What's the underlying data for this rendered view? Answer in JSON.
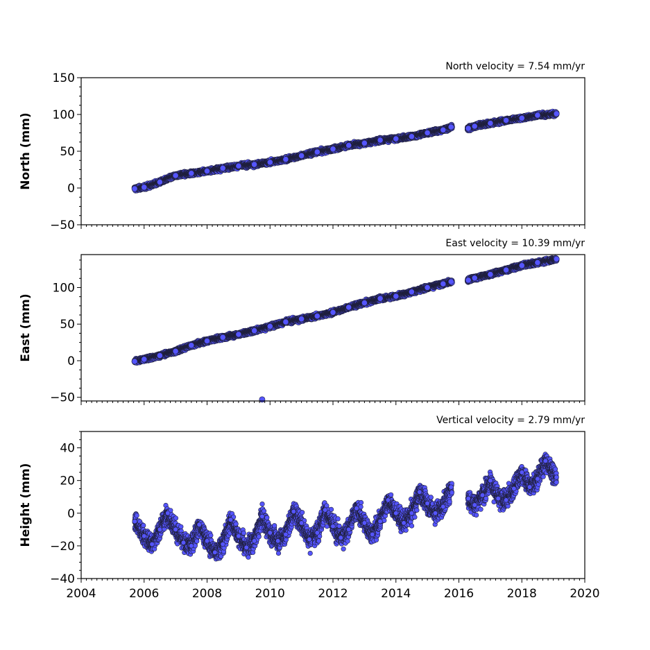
{
  "chart_data": [
    {
      "type": "scatter",
      "title": "North velocity = 7.54 mm/yr",
      "ylabel": "North (mm)",
      "xlim": [
        2004,
        2020
      ],
      "ylim": [
        -50,
        150
      ],
      "yticks": [
        -50,
        0,
        50,
        100,
        150
      ],
      "ytick_labels": [
        "−50",
        "0",
        "50",
        "100",
        "150"
      ],
      "x_tick_labels_shown": false,
      "marker_color": "#5555ff",
      "series": [
        {
          "x": [
            2005.7,
            2006.0,
            2006.5,
            2007.0,
            2007.5,
            2008.0,
            2008.5,
            2009.0,
            2009.5,
            2010.0,
            2010.5,
            2011.0,
            2011.5,
            2012.0,
            2012.5,
            2013.0,
            2013.5,
            2014.0,
            2014.5,
            2015.0,
            2015.5,
            2015.75,
            2016.3,
            2016.5,
            2017.0,
            2017.5,
            2018.0,
            2018.5,
            2019.1
          ],
          "y": [
            -1,
            1,
            8,
            17,
            20,
            23,
            27,
            30,
            32,
            35,
            39,
            44,
            49,
            53,
            58,
            61,
            65,
            67,
            70,
            75,
            79,
            83,
            81,
            84,
            88,
            92,
            95,
            99,
            101
          ]
        }
      ]
    },
    {
      "type": "scatter",
      "title": "East velocity = 10.39 mm/yr",
      "ylabel": "East (mm)",
      "xlim": [
        2004,
        2020
      ],
      "ylim": [
        -55,
        145
      ],
      "yticks": [
        -50,
        0,
        50,
        100
      ],
      "ytick_labels": [
        "−50",
        "0",
        "50",
        "100"
      ],
      "x_tick_labels_shown": false,
      "marker_color": "#5555ff",
      "series": [
        {
          "x": [
            2005.7,
            2006.0,
            2006.5,
            2007.0,
            2007.5,
            2008.0,
            2008.5,
            2009.0,
            2009.5,
            2010.0,
            2010.5,
            2011.0,
            2011.5,
            2012.0,
            2012.5,
            2013.0,
            2013.5,
            2014.0,
            2014.5,
            2015.0,
            2015.5,
            2015.75,
            2016.3,
            2016.5,
            2017.0,
            2017.5,
            2018.0,
            2018.5,
            2019.1
          ],
          "y": [
            -1,
            2,
            7,
            13,
            21,
            27,
            32,
            36,
            41,
            47,
            53,
            57,
            61,
            66,
            73,
            79,
            85,
            88,
            94,
            100,
            105,
            108,
            110,
            113,
            118,
            124,
            130,
            134,
            139
          ]
        }
      ]
    },
    {
      "type": "scatter",
      "title": "Vertical velocity = 2.79 mm/yr",
      "ylabel": "Height (mm)",
      "xlabel": "",
      "xlim": [
        2004,
        2020
      ],
      "ylim": [
        -40,
        50
      ],
      "yticks": [
        -40,
        -20,
        0,
        20,
        40
      ],
      "ytick_labels": [
        "−40",
        "−20",
        "0",
        "20",
        "40"
      ],
      "xticks": [
        2004,
        2006,
        2008,
        2010,
        2012,
        2014,
        2016,
        2018,
        2020
      ],
      "xtick_labels": [
        "2004",
        "2006",
        "2008",
        "2010",
        "2012",
        "2014",
        "2016",
        "2018",
        "2020"
      ],
      "marker_color": "#5555ff",
      "series": [
        {
          "x": [
            2005.7,
            2006.0,
            2006.25,
            2006.5,
            2006.75,
            2007.0,
            2007.25,
            2007.5,
            2007.75,
            2008.0,
            2008.25,
            2008.5,
            2008.75,
            2009.0,
            2009.25,
            2009.5,
            2009.75,
            2010.0,
            2010.25,
            2010.5,
            2010.75,
            2011.0,
            2011.25,
            2011.5,
            2011.75,
            2012.0,
            2012.25,
            2012.5,
            2012.75,
            2013.0,
            2013.25,
            2013.5,
            2013.75,
            2014.0,
            2014.25,
            2014.5,
            2014.75,
            2015.0,
            2015.25,
            2015.5,
            2015.75,
            2016.3,
            2016.5,
            2016.75,
            2017.0,
            2017.25,
            2017.5,
            2017.75,
            2018.0,
            2018.25,
            2018.5,
            2018.75,
            2019.1
          ],
          "y": [
            -5,
            -14,
            -19,
            -10,
            0,
            -10,
            -18,
            -20,
            -7,
            -17,
            -24,
            -19,
            -4,
            -14,
            -21,
            -17,
            -2,
            -12,
            -17,
            -13,
            1,
            -6,
            -16,
            -12,
            2,
            -8,
            -15,
            -10,
            3,
            -6,
            -13,
            -5,
            8,
            0,
            -6,
            0,
            13,
            6,
            0,
            4,
            16,
            9,
            5,
            11,
            20,
            9,
            8,
            15,
            25,
            16,
            21,
            32,
            22
          ]
        }
      ]
    }
  ]
}
